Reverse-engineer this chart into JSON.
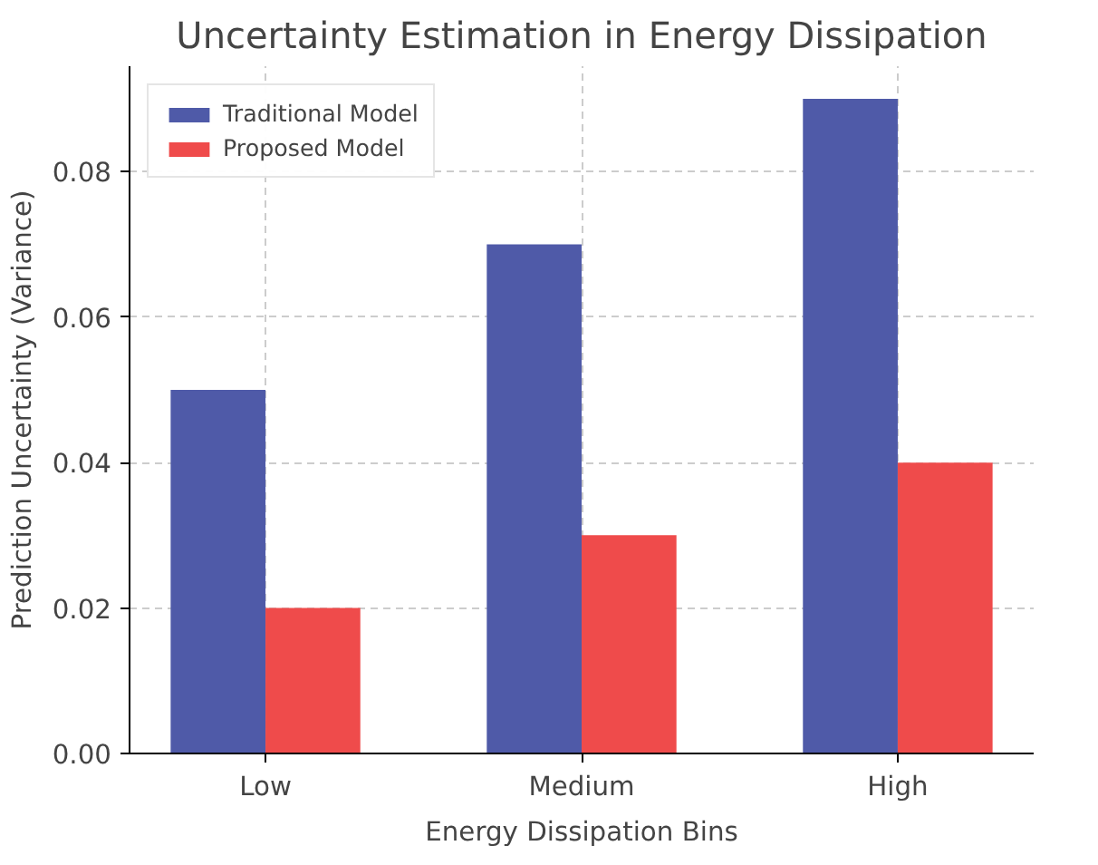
{
  "chart_data": {
    "type": "bar",
    "title": "Uncertainty Estimation in Energy Dissipation",
    "xlabel": "Energy Dissipation Bins",
    "ylabel": "Prediction Uncertainty (Variance)",
    "categories": [
      "Low",
      "Medium",
      "High"
    ],
    "series": [
      {
        "name": "Traditional Model",
        "color": "#4f5aa8",
        "values": [
          0.05,
          0.07,
          0.09
        ]
      },
      {
        "name": "Proposed Model",
        "color": "#ef4b4b",
        "values": [
          0.02,
          0.03,
          0.04
        ]
      }
    ],
    "ylim": [
      0,
      0.0945
    ],
    "yticks": [
      {
        "value": 0,
        "label": "0.00"
      },
      {
        "value": 0.02,
        "label": "0.02"
      },
      {
        "value": 0.04,
        "label": "0.04"
      },
      {
        "value": 0.06,
        "label": "0.06"
      },
      {
        "value": 0.08,
        "label": "0.08"
      }
    ],
    "grid": true,
    "legend": "top left"
  }
}
